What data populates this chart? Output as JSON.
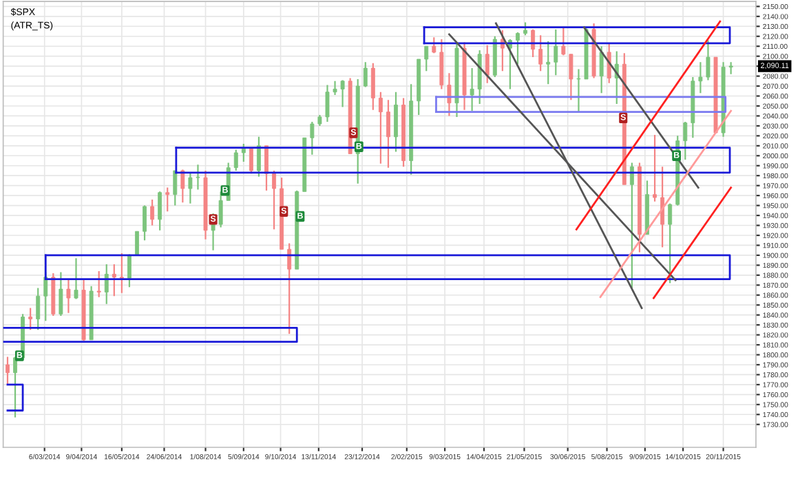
{
  "chart_data": {
    "type": "candlestick",
    "title": "$SPX",
    "subtitle": "(ATR_TS)",
    "x": [
      "2014-01-31",
      "2014-02-07",
      "2014-02-14",
      "2014-02-21",
      "2014-02-28",
      "2014-03-07",
      "2014-03-14",
      "2014-03-21",
      "2014-03-28",
      "2014-04-04",
      "2014-04-11",
      "2014-04-18",
      "2014-04-25",
      "2014-05-02",
      "2014-05-09",
      "2014-05-16",
      "2014-05-23",
      "2014-05-30",
      "2014-06-06",
      "2014-06-13",
      "2014-06-20",
      "2014-06-27",
      "2014-07-04",
      "2014-07-11",
      "2014-07-18",
      "2014-07-25",
      "2014-08-01",
      "2014-08-08",
      "2014-08-15",
      "2014-08-22",
      "2014-08-29",
      "2014-09-05",
      "2014-09-12",
      "2014-09-19",
      "2014-09-26",
      "2014-10-03",
      "2014-10-10",
      "2014-10-17",
      "2014-10-24",
      "2014-10-31",
      "2014-11-07",
      "2014-11-14",
      "2014-11-21",
      "2014-11-28",
      "2014-12-05",
      "2014-12-12",
      "2014-12-19",
      "2014-12-26",
      "2015-01-02",
      "2015-01-09",
      "2015-01-16",
      "2015-01-23",
      "2015-01-30",
      "2015-02-06",
      "2015-02-13",
      "2015-02-20",
      "2015-02-27",
      "2015-03-06",
      "2015-03-13",
      "2015-03-20",
      "2015-03-27",
      "2015-04-03",
      "2015-04-10",
      "2015-04-17",
      "2015-04-24",
      "2015-05-01",
      "2015-05-08",
      "2015-05-15",
      "2015-05-22",
      "2015-05-29",
      "2015-06-05",
      "2015-06-12",
      "2015-06-19",
      "2015-06-26",
      "2015-07-03",
      "2015-07-10",
      "2015-07-17",
      "2015-07-24",
      "2015-07-31",
      "2015-08-07",
      "2015-08-14",
      "2015-08-21",
      "2015-08-28",
      "2015-09-04",
      "2015-09-11",
      "2015-09-18",
      "2015-09-25",
      "2015-10-02",
      "2015-10-09",
      "2015-10-16",
      "2015-10-23",
      "2015-10-30",
      "2015-11-06",
      "2015-11-13",
      "2015-11-20",
      "2015-11-27"
    ],
    "ohlc": [
      [
        1790,
        1798,
        1770,
        1782
      ],
      [
        1782,
        1798,
        1737,
        1797
      ],
      [
        1797,
        1841,
        1795,
        1838
      ],
      [
        1838,
        1847,
        1825,
        1836
      ],
      [
        1836,
        1867,
        1825,
        1859
      ],
      [
        1859,
        1883,
        1834,
        1878
      ],
      [
        1878,
        1882,
        1839,
        1841
      ],
      [
        1841,
        1883,
        1839,
        1866
      ],
      [
        1866,
        1875,
        1842,
        1857
      ],
      [
        1857,
        1897,
        1856,
        1865
      ],
      [
        1865,
        1876,
        1814,
        1815
      ],
      [
        1815,
        1869,
        1815,
        1864
      ],
      [
        1864,
        1884,
        1858,
        1863
      ],
      [
        1863,
        1891,
        1851,
        1881
      ],
      [
        1881,
        1891,
        1859,
        1878
      ],
      [
        1878,
        1902,
        1862,
        1877
      ],
      [
        1877,
        1901,
        1868,
        1900
      ],
      [
        1900,
        1924,
        1900,
        1924
      ],
      [
        1924,
        1950,
        1915,
        1949
      ],
      [
        1949,
        1956,
        1930,
        1936
      ],
      [
        1936,
        1964,
        1925,
        1963
      ],
      [
        1963,
        1968,
        1944,
        1961
      ],
      [
        1961,
        1985,
        1950,
        1985
      ],
      [
        1985,
        1986,
        1953,
        1967
      ],
      [
        1967,
        1983,
        1952,
        1978
      ],
      [
        1978,
        1991,
        1966,
        1978
      ],
      [
        1978,
        1985,
        1916,
        1925
      ],
      [
        1925,
        1942,
        1905,
        1931
      ],
      [
        1931,
        1964,
        1928,
        1955
      ],
      [
        1955,
        1993,
        1955,
        1988
      ],
      [
        1988,
        2006,
        1985,
        2003
      ],
      [
        2003,
        2012,
        1994,
        2007
      ],
      [
        2007,
        2008,
        1982,
        1985
      ],
      [
        1985,
        2019,
        1979,
        2010
      ],
      [
        2010,
        2010,
        1965,
        1982
      ],
      [
        1982,
        1985,
        1926,
        1967
      ],
      [
        1967,
        1978,
        1906,
        1906
      ],
      [
        1906,
        1912,
        1821,
        1886
      ],
      [
        1886,
        1965,
        1886,
        1964
      ],
      [
        1964,
        2018,
        1964,
        2018
      ],
      [
        2018,
        2034,
        2001,
        2032
      ],
      [
        2032,
        2041,
        2030,
        2039
      ],
      [
        2039,
        2071,
        2034,
        2064
      ],
      [
        2064,
        2075,
        2061,
        2067
      ],
      [
        2067,
        2076,
        2049,
        2075
      ],
      [
        2075,
        2078,
        2002,
        2002
      ],
      [
        2002,
        2077,
        1972,
        2070
      ],
      [
        2070,
        2094,
        2069,
        2088
      ],
      [
        2088,
        2093,
        2046,
        2058
      ],
      [
        2058,
        2064,
        1992,
        2044
      ],
      [
        2044,
        2056,
        1988,
        2019
      ],
      [
        2019,
        2064,
        2004,
        2051
      ],
      [
        2051,
        2058,
        1989,
        1995
      ],
      [
        1995,
        2072,
        1981,
        2055
      ],
      [
        2055,
        2097,
        2041,
        2097
      ],
      [
        2097,
        2110,
        2085,
        2110
      ],
      [
        2110,
        2119,
        2103,
        2104
      ],
      [
        2104,
        2117,
        2067,
        2071
      ],
      [
        2071,
        2083,
        2040,
        2053
      ],
      [
        2053,
        2114,
        2039,
        2108
      ],
      [
        2108,
        2114,
        2046,
        2061
      ],
      [
        2061,
        2088,
        2045,
        2067
      ],
      [
        2067,
        2106,
        2052,
        2102
      ],
      [
        2102,
        2111,
        2073,
        2081
      ],
      [
        2081,
        2120,
        2079,
        2117
      ],
      [
        2117,
        2126,
        2085,
        2108
      ],
      [
        2108,
        2117,
        2067,
        2116
      ],
      [
        2116,
        2124,
        2092,
        2123
      ],
      [
        2123,
        2134,
        2121,
        2126
      ],
      [
        2126,
        2127,
        2099,
        2107
      ],
      [
        2107,
        2121,
        2085,
        2092
      ],
      [
        2092,
        2115,
        2072,
        2094
      ],
      [
        2094,
        2127,
        2081,
        2110
      ],
      [
        2110,
        2129,
        2101,
        2102
      ],
      [
        2102,
        2102,
        2056,
        2077
      ],
      [
        2077,
        2087,
        2044,
        2077
      ],
      [
        2077,
        2128,
        2077,
        2127
      ],
      [
        2127,
        2133,
        2078,
        2080
      ],
      [
        2080,
        2110,
        2063,
        2104
      ],
      [
        2104,
        2113,
        2073,
        2078
      ],
      [
        2078,
        2105,
        2052,
        2092
      ],
      [
        2092,
        2103,
        1971,
        1971
      ],
      [
        1971,
        1993,
        1867,
        1989
      ],
      [
        1989,
        1993,
        1903,
        1921
      ],
      [
        1921,
        1975,
        1921,
        1961
      ],
      [
        1961,
        2021,
        1954,
        1958
      ],
      [
        1958,
        1989,
        1908,
        1931
      ],
      [
        1931,
        1952,
        1872,
        1951
      ],
      [
        1951,
        2020,
        1950,
        2015
      ],
      [
        2015,
        2034,
        1996,
        2033
      ],
      [
        2033,
        2079,
        2018,
        2075
      ],
      [
        2075,
        2094,
        2063,
        2079
      ],
      [
        2079,
        2116,
        2076,
        2099
      ],
      [
        2099,
        2099,
        2023,
        2023
      ],
      [
        2023,
        2094,
        2019,
        2089
      ],
      [
        2089,
        2094,
        2082,
        2090.11
      ]
    ],
    "colors": [
      "#f48484",
      "#7cc47c",
      "#7cc47c",
      "#f48484",
      "#7cc47c",
      "#7cc47c",
      "#f48484",
      "#7cc47c",
      "#f48484",
      "#7cc47c",
      "#f48484",
      "#7cc47c",
      "#f48484",
      "#7cc47c",
      "#f48484",
      "#f48484",
      "#7cc47c",
      "#7cc47c",
      "#7cc47c",
      "#f48484",
      "#7cc47c",
      "#f48484",
      "#7cc47c",
      "#f48484",
      "#7cc47c",
      "#7cc47c",
      "#f48484",
      "#7cc47c",
      "#7cc47c",
      "#7cc47c",
      "#7cc47c",
      "#7cc47c",
      "#f48484",
      "#7cc47c",
      "#f48484",
      "#f48484",
      "#f48484",
      "#f48484",
      "#7cc47c",
      "#7cc47c",
      "#7cc47c",
      "#7cc47c",
      "#7cc47c",
      "#7cc47c",
      "#7cc47c",
      "#f48484",
      "#7cc47c",
      "#7cc47c",
      "#f48484",
      "#f48484",
      "#f48484",
      "#7cc47c",
      "#f48484",
      "#7cc47c",
      "#7cc47c",
      "#7cc47c",
      "#f48484",
      "#f48484",
      "#f48484",
      "#7cc47c",
      "#f48484",
      "#7cc47c",
      "#7cc47c",
      "#f48484",
      "#7cc47c",
      "#f48484",
      "#7cc47c",
      "#7cc47c",
      "#7cc47c",
      "#f48484",
      "#f48484",
      "#7cc47c",
      "#7cc47c",
      "#f48484",
      "#f48484",
      "#7cc47c",
      "#7cc47c",
      "#f48484",
      "#7cc47c",
      "#f48484",
      "#7cc47c",
      "#f48484",
      "#7cc47c",
      "#f48484",
      "#7cc47c",
      "#f48484",
      "#f48484",
      "#7cc47c",
      "#7cc47c",
      "#7cc47c",
      "#7cc47c",
      "#7cc47c",
      "#7cc47c",
      "#f48484",
      "#7cc47c",
      "#7cc47c"
    ],
    "series": [
      {
        "type": "line",
        "color": "#1a1ad8",
        "x": [
          "2014-01-31",
          "2014-02-14",
          "2014-02-14",
          "2014-01-31"
        ],
        "values": [
          1744,
          1744,
          1770,
          1770
        ]
      },
      {
        "type": "line",
        "color": "#1a1ad8",
        "x": [
          "2014-01-27",
          "2014-10-24",
          "2014-10-24",
          "2014-01-27"
        ],
        "values": [
          1813,
          1813,
          1827,
          1827
        ]
      },
      {
        "type": "line",
        "color": "#1a1ad8",
        "x": [
          "2014-03-07",
          "2015-11-26",
          "2015-11-26",
          "2014-03-07"
        ],
        "values": [
          1876,
          1876,
          1900,
          1900
        ]
      },
      {
        "type": "line",
        "color": "#1a1ad8",
        "x": [
          "2014-03-07",
          "2014-03-07"
        ],
        "values": [
          1876,
          1900
        ]
      },
      {
        "type": "line",
        "color": "#1a1ad8",
        "x": [
          "2014-07-05",
          "2015-11-26",
          "2015-11-26",
          "2014-07-05"
        ],
        "values": [
          1983,
          1983,
          2008,
          2008
        ]
      },
      {
        "type": "line",
        "color": "#1a1ad8",
        "x": [
          "2014-07-05",
          "2014-07-05"
        ],
        "values": [
          1983,
          2008
        ]
      },
      {
        "type": "line",
        "color": "#1a1ad8",
        "x": [
          "2015-02-18",
          "2015-11-26",
          "2015-11-26",
          "2015-02-18"
        ],
        "values": [
          2113,
          2113,
          2129,
          2129
        ]
      },
      {
        "type": "line",
        "color": "#1a1ad8",
        "x": [
          "2015-02-18",
          "2015-02-18"
        ],
        "values": [
          2113,
          2129
        ]
      },
      {
        "type": "line",
        "color": "#7a7af0",
        "x": [
          "2015-03-01",
          "2015-11-22",
          "2015-11-22",
          "2015-03-01"
        ],
        "values": [
          2044,
          2044,
          2059,
          2059
        ]
      },
      {
        "type": "line",
        "color": "#7a7af0",
        "x": [
          "2015-03-01",
          "2015-03-01"
        ],
        "values": [
          2044,
          2059
        ]
      },
      {
        "type": "line",
        "color": "#555555",
        "x": [
          "2015-03-13",
          "2015-10-07"
        ],
        "values": [
          2122,
          1875
        ]
      },
      {
        "type": "line",
        "color": "#555555",
        "x": [
          "2015-04-25",
          "2015-09-06"
        ],
        "values": [
          2133,
          1847
        ]
      },
      {
        "type": "line",
        "color": "#555555",
        "x": [
          "2015-07-15",
          "2015-10-28"
        ],
        "values": [
          2129,
          1968
        ]
      },
      {
        "type": "line",
        "color": "#ff2020",
        "x": [
          "2015-07-08",
          "2015-11-17"
        ],
        "values": [
          1926,
          2135
        ]
      },
      {
        "type": "line",
        "color": "#ff2020",
        "x": [
          "2015-09-17",
          "2015-11-27"
        ],
        "values": [
          1857,
          1968
        ]
      },
      {
        "type": "line",
        "color": "#ff9a9a",
        "x": [
          "2015-07-30",
          "2015-11-27"
        ],
        "values": [
          1858,
          2045
        ]
      }
    ],
    "annotations": [
      {
        "text": "B",
        "x": "2014-02-11",
        "y": 1799
      },
      {
        "text": "S",
        "x": "2014-08-08",
        "y": 1936
      },
      {
        "text": "B",
        "x": "2014-08-19",
        "y": 1965
      },
      {
        "text": "S",
        "x": "2014-10-12",
        "y": 1944
      },
      {
        "text": "B",
        "x": "2014-10-27",
        "y": 1939
      },
      {
        "text": "S",
        "x": "2014-12-15",
        "y": 2023
      },
      {
        "text": "B",
        "x": "2014-12-20",
        "y": 2009
      },
      {
        "text": "S",
        "x": "2015-08-20",
        "y": 2038
      },
      {
        "text": "B",
        "x": "2015-10-08",
        "y": 2000
      },
      "2,090.11"
    ],
    "xlim": [
      "2014-01-27",
      "2015-12-20"
    ],
    "xticks": [
      {
        "value": "2014-03-06",
        "label": "6/03/2014"
      },
      {
        "value": "2014-04-09",
        "label": "9/04/2014"
      },
      {
        "value": "2014-05-16",
        "label": "16/05/2014"
      },
      {
        "value": "2014-06-24",
        "label": "24/06/2014"
      },
      {
        "value": "2014-08-01",
        "label": "1/08/2014"
      },
      {
        "value": "2014-09-05",
        "label": "5/09/2014"
      },
      {
        "value": "2014-10-09",
        "label": "9/10/2014"
      },
      {
        "value": "2014-11-13",
        "label": "13/11/2014"
      },
      {
        "value": "2014-12-23",
        "label": "23/12/2014"
      },
      {
        "value": "2015-02-02",
        "label": "2/02/2015"
      },
      {
        "value": "2015-03-09",
        "label": "9/03/2015"
      },
      {
        "value": "2015-04-14",
        "label": "14/04/2015"
      },
      {
        "value": "2015-05-21",
        "label": "21/05/2015"
      },
      {
        "value": "2015-06-30",
        "label": "30/06/2015"
      },
      {
        "value": "2015-08-05",
        "label": "5/08/2015"
      },
      {
        "value": "2015-09-09",
        "label": "9/09/2015"
      },
      {
        "value": "2015-10-14",
        "label": "14/10/2015"
      },
      {
        "value": "2015-11-20",
        "label": "20/11/2015"
      }
    ],
    "ylim": [
      1707,
      2155
    ],
    "yticks": [
      {
        "value": 1730,
        "label": "1730.00"
      },
      {
        "value": 1740,
        "label": "1740.00"
      },
      {
        "value": 1750,
        "label": "1750.00"
      },
      {
        "value": 1760,
        "label": "1760.00"
      },
      {
        "value": 1770,
        "label": "1770.00"
      },
      {
        "value": 1780,
        "label": "1780.00"
      },
      {
        "value": 1790,
        "label": "1790.00"
      },
      {
        "value": 1800,
        "label": "1800.00"
      },
      {
        "value": 1810,
        "label": "1810.00"
      },
      {
        "value": 1820,
        "label": "1820.00"
      },
      {
        "value": 1830,
        "label": "1830.00"
      },
      {
        "value": 1840,
        "label": "1840.00"
      },
      {
        "value": 1850,
        "label": "1850.00"
      },
      {
        "value": 1860,
        "label": "1860.00"
      },
      {
        "value": 1870,
        "label": "1870.00"
      },
      {
        "value": 1880,
        "label": "1880.00"
      },
      {
        "value": 1890,
        "label": "1890.00"
      },
      {
        "value": 1900,
        "label": "1900.00"
      },
      {
        "value": 1910,
        "label": "1910.00"
      },
      {
        "value": 1920,
        "label": "1920.00"
      },
      {
        "value": 1930,
        "label": "1930.00"
      },
      {
        "value": 1940,
        "label": "1940.00"
      },
      {
        "value": 1950,
        "label": "1950.00"
      },
      {
        "value": 1960,
        "label": "1960.00"
      },
      {
        "value": 1970,
        "label": "1970.00"
      },
      {
        "value": 1980,
        "label": "1980.00"
      },
      {
        "value": 1990,
        "label": "1990.00"
      },
      {
        "value": 2000,
        "label": "2000.00"
      },
      {
        "value": 2010,
        "label": "2010.00"
      },
      {
        "value": 2020,
        "label": "2020.00"
      },
      {
        "value": 2030,
        "label": "2030.00"
      },
      {
        "value": 2040,
        "label": "2040.00"
      },
      {
        "value": 2050,
        "label": "2050.00"
      },
      {
        "value": 2060,
        "label": "2060.00"
      },
      {
        "value": 2070,
        "label": "2070.00"
      },
      {
        "value": 2080,
        "label": "2080.00"
      },
      {
        "value": 2090,
        "label": null
      },
      {
        "value": 2100,
        "label": "2100.00"
      },
      {
        "value": 2110,
        "label": "2110.00"
      },
      {
        "value": 2120,
        "label": "2120.00"
      },
      {
        "value": 2130,
        "label": "2130.00"
      },
      {
        "value": 2140,
        "label": "2140.00"
      },
      {
        "value": 2150,
        "label": "2150.00"
      }
    ],
    "grid": true
  }
}
